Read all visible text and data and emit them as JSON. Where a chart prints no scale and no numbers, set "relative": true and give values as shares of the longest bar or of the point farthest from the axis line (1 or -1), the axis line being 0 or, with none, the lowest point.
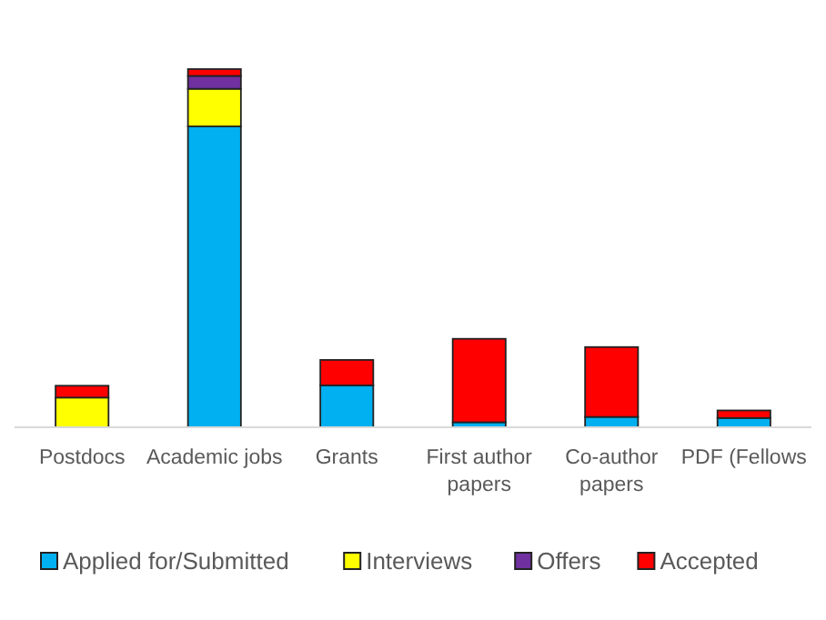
{
  "chart_data": {
    "type": "bar",
    "stacked": true,
    "relative": true,
    "legend": "bottom",
    "categories": [
      "Postdocs",
      "Academic jobs",
      "Grants",
      "First author papers",
      "Co-author papers",
      "PDF (Fellows"
    ],
    "series": [
      {
        "name": "Applied for/Submitted",
        "color": "#00b0f0",
        "values": [
          0,
          0.84,
          0.117,
          0.014,
          0.029,
          0.026
        ]
      },
      {
        "name": "Interviews",
        "color": "#ffff00",
        "values": [
          0.083,
          0.105,
          0,
          0,
          0,
          0
        ]
      },
      {
        "name": "Offers",
        "color": "#7030a0",
        "values": [
          0,
          0.036,
          0,
          0,
          0,
          0
        ]
      },
      {
        "name": "Accepted",
        "color": "#ff0000",
        "values": [
          0.033,
          0.019,
          0.071,
          0.233,
          0.195,
          0.021
        ]
      }
    ]
  }
}
